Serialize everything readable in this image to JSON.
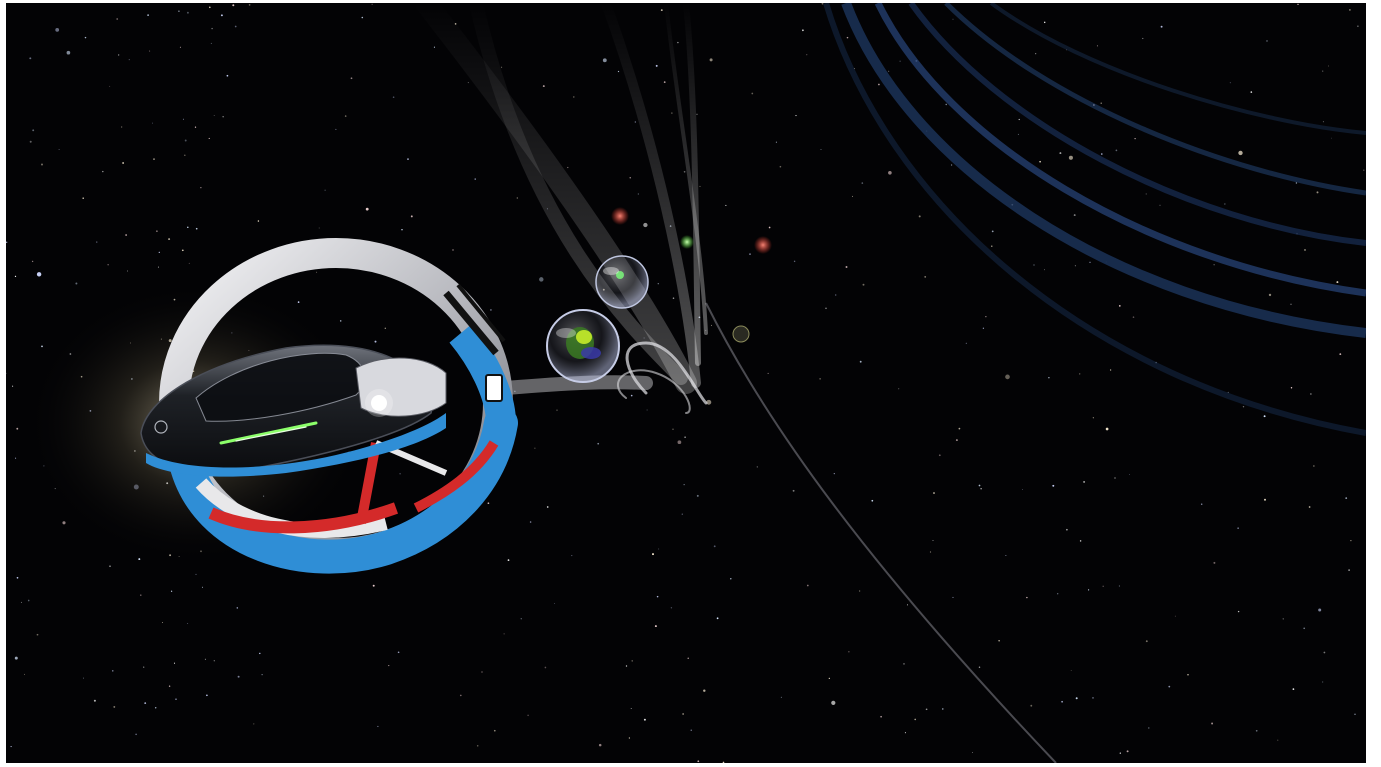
{
  "scene": {
    "description_label": "",
    "colors": {
      "space": "#030305",
      "ring_blue": "#2f8ed6",
      "ring_red": "#d42a2a",
      "ring_white": "#e8e8ea",
      "ring_silver": "#c9cacf",
      "ship_hull": "#16181c",
      "cockpit_glow": "#8cff6a",
      "trail": "#d8d8dc",
      "planet_band": "#1e3a66",
      "light_red": "#ff5a4a",
      "light_green": "#7cff5a"
    },
    "icons": {
      "player_ship": "ring-racer-ship-icon",
      "bubble_large": "bubble-pod-icon",
      "bubble_small": "bubble-pod-icon",
      "planet": "gas-giant-icon"
    }
  }
}
